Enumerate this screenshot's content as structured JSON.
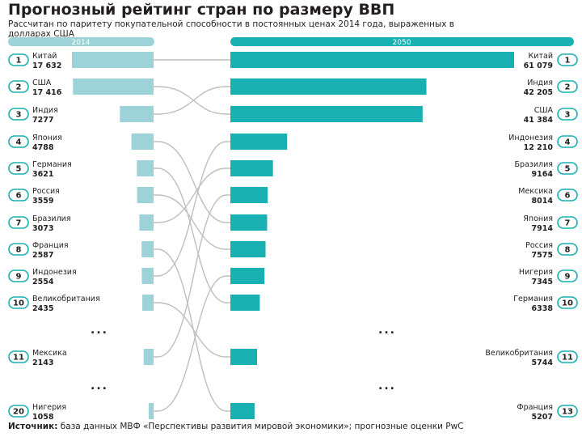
{
  "header": {
    "title": "Прогнозный рейтинг стран по размеру ВВП",
    "subtitle": "Рассчитан по паритету покупательной способности в постоянных ценах 2014 года, выраженных в долларах США"
  },
  "source": {
    "label": "Источник:",
    "text": " база данных МВФ «Перспективы развития мировой экономики»; прогнозные оценки PwC"
  },
  "colors": {
    "left_bar": "#9dd3d8",
    "right_bar": "#19b0b2",
    "header_left": "#9dd3d8",
    "header_right": "#19b0b2",
    "connector": "#bfbfbf",
    "accent": "#19b0b2"
  },
  "chart_data": {
    "type": "bar",
    "left": {
      "year": "2014",
      "items": [
        {
          "rank": "1",
          "country": "Китай",
          "value": 17632,
          "value_label": "17 632"
        },
        {
          "rank": "2",
          "country": "США",
          "value": 17416,
          "value_label": "17 416"
        },
        {
          "rank": "3",
          "country": "Индия",
          "value": 7277,
          "value_label": "7277"
        },
        {
          "rank": "4",
          "country": "Япония",
          "value": 4788,
          "value_label": "4788"
        },
        {
          "rank": "5",
          "country": "Германия",
          "value": 3621,
          "value_label": "3621"
        },
        {
          "rank": "6",
          "country": "Россия",
          "value": 3559,
          "value_label": "3559"
        },
        {
          "rank": "7",
          "country": "Бразилия",
          "value": 3073,
          "value_label": "3073"
        },
        {
          "rank": "8",
          "country": "Франция",
          "value": 2587,
          "value_label": "2587"
        },
        {
          "rank": "9",
          "country": "Индонезия",
          "value": 2554,
          "value_label": "2554"
        },
        {
          "rank": "10",
          "country": "Великобритания",
          "value": 2435,
          "value_label": "2435"
        },
        {
          "rank": "11",
          "country": "Мексика",
          "value": 2143,
          "value_label": "2143"
        },
        {
          "rank": "20",
          "country": "Нигерия",
          "value": 1058,
          "value_label": "1058"
        }
      ]
    },
    "right": {
      "year": "2050",
      "items": [
        {
          "rank": "1",
          "country": "Китай",
          "value": 61079,
          "value_label": "61 079"
        },
        {
          "rank": "2",
          "country": "Индия",
          "value": 42205,
          "value_label": "42 205"
        },
        {
          "rank": "3",
          "country": "США",
          "value": 41384,
          "value_label": "41 384"
        },
        {
          "rank": "4",
          "country": "Индонезия",
          "value": 12210,
          "value_label": "12 210"
        },
        {
          "rank": "5",
          "country": "Бразилия",
          "value": 9164,
          "value_label": "9164"
        },
        {
          "rank": "6",
          "country": "Мексика",
          "value": 8014,
          "value_label": "8014"
        },
        {
          "rank": "7",
          "country": "Япония",
          "value": 7914,
          "value_label": "7914"
        },
        {
          "rank": "8",
          "country": "Россия",
          "value": 7575,
          "value_label": "7575"
        },
        {
          "rank": "9",
          "country": "Нигерия",
          "value": 7345,
          "value_label": "7345"
        },
        {
          "rank": "10",
          "country": "Германия",
          "value": 6338,
          "value_label": "6338"
        },
        {
          "rank": "11",
          "country": "Великобритания",
          "value": 5744,
          "value_label": "5744"
        },
        {
          "rank": "13",
          "country": "Франция",
          "value": 5207,
          "value_label": "5207"
        }
      ]
    },
    "ellipsis": "..."
  }
}
